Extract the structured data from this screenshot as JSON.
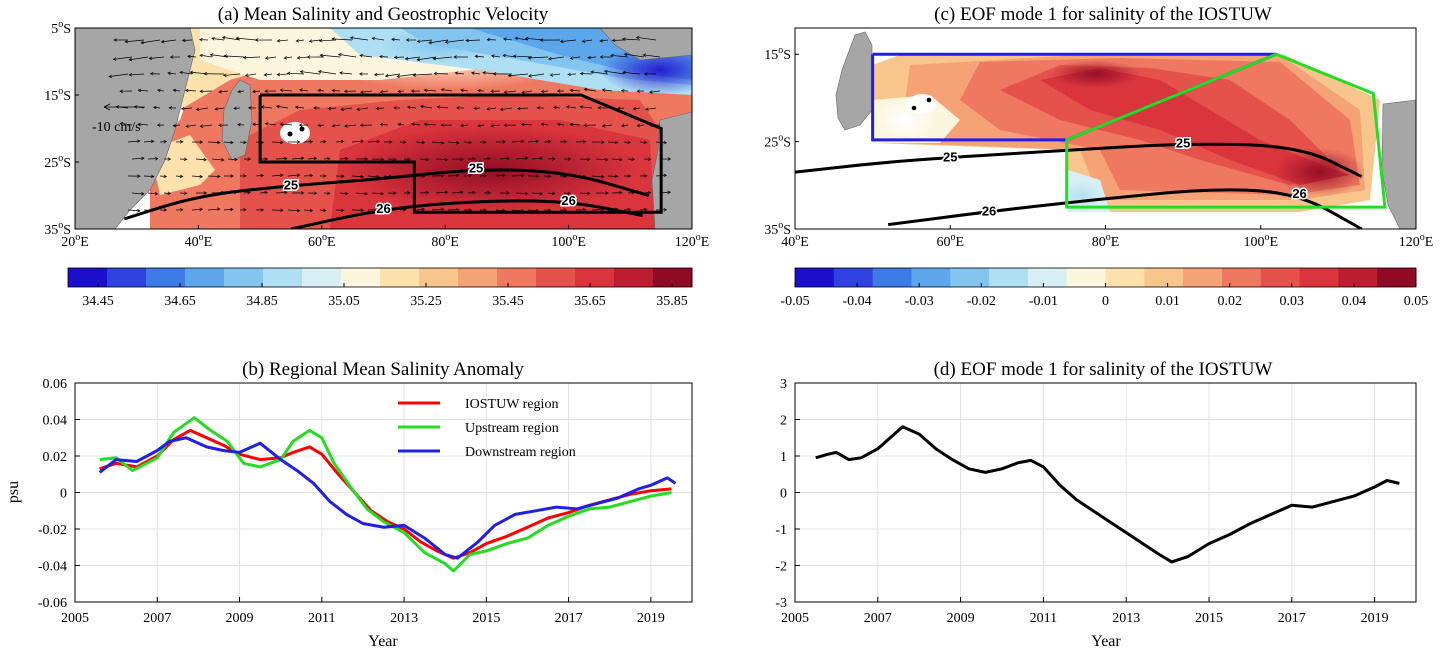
{
  "chart_data": [
    {
      "panel": "a",
      "type": "heatmap",
      "title": "(a) Mean Salinity and Geostrophic Velocity",
      "x_ticks": [
        "20oE",
        "40oE",
        "60oE",
        "80oE",
        "100oE",
        "120oE"
      ],
      "y_ticks": [
        "5oS",
        "15oS",
        "25oS",
        "35oS"
      ],
      "xlim": [
        20,
        120
      ],
      "ylim": [
        -35,
        -5
      ],
      "quiver_key": "-10 cm/s",
      "contours": [
        {
          "label": "25",
          "points": [
            [
              28,
              -33.5
            ],
            [
              40,
              -30
            ],
            [
              55,
              -28.5
            ],
            [
              70,
              -27.5
            ],
            [
              85,
              -26
            ],
            [
              100,
              -26.5
            ],
            [
              113,
              -30
            ]
          ]
        },
        {
          "label": "26",
          "points": [
            [
              55,
              -35
            ],
            [
              70,
              -32
            ],
            [
              85,
              -30.8
            ],
            [
              100,
              -30.8
            ],
            [
              112,
              -33
            ]
          ]
        }
      ],
      "boxes": [
        {
          "name": "IOSTUW region",
          "color": "#000000",
          "points": [
            [
              50,
              -15
            ],
            [
              102,
              -15
            ],
            [
              115,
              -20
            ],
            [
              115,
              -32.5
            ],
            [
              75,
              -32.5
            ],
            [
              75,
              -25
            ],
            [
              50,
              -25
            ],
            [
              50,
              -15
            ]
          ]
        }
      ],
      "colorbar": {
        "ticks": [
          "34.45",
          "34.65",
          "34.85",
          "35.05",
          "35.25",
          "35.45",
          "35.65",
          "35.85"
        ],
        "colors": [
          "#1c0fcb",
          "#2f42e0",
          "#3e7be6",
          "#5ca6ec",
          "#84c5f0",
          "#aedff2",
          "#d8f0f5",
          "#fdf6de",
          "#fde2ae",
          "#f8c68c",
          "#f4a276",
          "#ef7860",
          "#e5524c",
          "#da353d",
          "#bd1d30",
          "#8f0b24"
        ]
      }
    },
    {
      "panel": "c",
      "type": "heatmap",
      "title": "(c) EOF mode 1 for salinity of the IOSTUW",
      "x_ticks": [
        "40oE",
        "60oE",
        "80oE",
        "100oE",
        "120oE"
      ],
      "y_ticks": [
        "15oS",
        "25oS",
        "35oS"
      ],
      "xlim": [
        40,
        120
      ],
      "ylim": [
        -35,
        -12
      ],
      "contours": [
        {
          "label": "25",
          "points": [
            [
              40,
              -28.5
            ],
            [
              50,
              -27.5
            ],
            [
              60,
              -26.8
            ],
            [
              75,
              -26
            ],
            [
              90,
              -25.2
            ],
            [
              105,
              -25.5
            ],
            [
              113,
              -29
            ]
          ]
        },
        {
          "label": "26",
          "points": [
            [
              52,
              -34.5
            ],
            [
              65,
              -33
            ],
            [
              80,
              -31.5
            ],
            [
              95,
              -30.3
            ],
            [
              105,
              -31
            ],
            [
              113,
              -35
            ]
          ]
        }
      ],
      "boxes": [
        {
          "name": "Downstream region",
          "color": "#1f1fe6",
          "points": [
            [
              50,
              -15
            ],
            [
              102,
              -15
            ],
            [
              75,
              -24.8
            ],
            [
              50,
              -24.8
            ],
            [
              50,
              -15
            ]
          ]
        },
        {
          "name": "Upstream region",
          "color": "#22dd22",
          "points": [
            [
              102,
              -15
            ],
            [
              114.5,
              -19.5
            ],
            [
              116,
              -32.5
            ],
            [
              75,
              -32.5
            ],
            [
              75,
              -24.8
            ],
            [
              102,
              -15
            ]
          ]
        }
      ],
      "colorbar": {
        "ticks": [
          "-0.05",
          "-0.04",
          "-0.03",
          "-0.02",
          "-0.01",
          "0",
          "0.01",
          "0.02",
          "0.03",
          "0.04",
          "0.05"
        ],
        "colors": [
          "#1c0fcb",
          "#2f42e0",
          "#3e7be6",
          "#5ca6ec",
          "#84c5f0",
          "#aedff2",
          "#d8f0f5",
          "#fdf6de",
          "#fde2ae",
          "#f8c68c",
          "#f4a276",
          "#ef7860",
          "#e5524c",
          "#da353d",
          "#bd1d30",
          "#8f0b24"
        ]
      }
    },
    {
      "panel": "b",
      "type": "line",
      "title": "(b) Regional Mean Salinity Anomaly",
      "xlabel": "Year",
      "ylabel": "psu",
      "xlim": [
        2005,
        2020
      ],
      "ylim": [
        -0.06,
        0.06
      ],
      "x_ticks": [
        2005,
        2007,
        2009,
        2011,
        2013,
        2015,
        2017,
        2019
      ],
      "y_ticks": [
        -0.06,
        -0.04,
        -0.02,
        0,
        0.02,
        0.04,
        0.06
      ],
      "y_tick_labels": [
        "-0.06",
        "-0.04",
        "-0.02",
        "0",
        "0.02",
        "0.04",
        "0.06"
      ],
      "grid": true,
      "legend_position": "top-right",
      "series": [
        {
          "name": "IOSTUW region",
          "color": "#ff0000",
          "x": [
            2005.6,
            2006.0,
            2006.5,
            2007.0,
            2007.4,
            2007.8,
            2008.2,
            2008.6,
            2009.0,
            2009.5,
            2010.0,
            2010.3,
            2010.7,
            2011.0,
            2011.4,
            2011.8,
            2012.2,
            2012.6,
            2013.0,
            2013.4,
            2013.8,
            2014.2,
            2014.6,
            2015.0,
            2015.5,
            2016.0,
            2016.5,
            2017.0,
            2017.5,
            2018.0,
            2018.5,
            2019.0,
            2019.5
          ],
          "y": [
            0.013,
            0.016,
            0.014,
            0.02,
            0.029,
            0.034,
            0.03,
            0.026,
            0.021,
            0.018,
            0.019,
            0.022,
            0.025,
            0.021,
            0.01,
            0.0,
            -0.01,
            -0.016,
            -0.02,
            -0.027,
            -0.032,
            -0.036,
            -0.033,
            -0.028,
            -0.024,
            -0.019,
            -0.014,
            -0.011,
            -0.007,
            -0.004,
            -0.001,
            0.001,
            0.002
          ]
        },
        {
          "name": "Upstream region",
          "color": "#22dd22",
          "x": [
            2005.6,
            2006.0,
            2006.4,
            2007.0,
            2007.4,
            2007.9,
            2008.3,
            2008.7,
            2009.1,
            2009.5,
            2010.0,
            2010.3,
            2010.7,
            2011.0,
            2011.3,
            2011.7,
            2012.1,
            2012.5,
            2013.0,
            2013.5,
            2014.0,
            2014.2,
            2014.6,
            2015.0,
            2015.5,
            2016.0,
            2016.5,
            2017.0,
            2017.5,
            2018.0,
            2018.5,
            2019.0,
            2019.5
          ],
          "y": [
            0.018,
            0.019,
            0.012,
            0.019,
            0.033,
            0.041,
            0.034,
            0.028,
            0.016,
            0.014,
            0.018,
            0.028,
            0.034,
            0.03,
            0.016,
            0.003,
            -0.009,
            -0.016,
            -0.022,
            -0.033,
            -0.039,
            -0.043,
            -0.034,
            -0.032,
            -0.028,
            -0.025,
            -0.018,
            -0.013,
            -0.009,
            -0.008,
            -0.005,
            -0.002,
            0.0
          ]
        },
        {
          "name": "Downstream region",
          "color": "#1f1fe6",
          "x": [
            2005.6,
            2006.0,
            2006.5,
            2007.0,
            2007.3,
            2007.7,
            2008.2,
            2008.6,
            2009.0,
            2009.5,
            2010.0,
            2010.4,
            2010.8,
            2011.2,
            2011.6,
            2012.0,
            2012.5,
            2013.0,
            2013.5,
            2014.0,
            2014.3,
            2014.8,
            2015.2,
            2015.7,
            2016.2,
            2016.7,
            2017.2,
            2017.7,
            2018.2,
            2018.7,
            2019.0,
            2019.4,
            2019.6
          ],
          "y": [
            0.011,
            0.018,
            0.017,
            0.023,
            0.028,
            0.03,
            0.025,
            0.023,
            0.022,
            0.027,
            0.018,
            0.012,
            0.005,
            -0.005,
            -0.012,
            -0.017,
            -0.019,
            -0.018,
            -0.025,
            -0.034,
            -0.036,
            -0.027,
            -0.018,
            -0.012,
            -0.01,
            -0.008,
            -0.009,
            -0.006,
            -0.003,
            0.002,
            0.004,
            0.008,
            0.005
          ]
        }
      ]
    },
    {
      "panel": "d",
      "type": "line",
      "title": "(d) EOF mode 1 for salinity of the IOSTUW",
      "xlabel": "Year",
      "xlim": [
        2005,
        2020
      ],
      "ylim": [
        -3,
        3
      ],
      "x_ticks": [
        2005,
        2007,
        2009,
        2011,
        2013,
        2015,
        2017,
        2019
      ],
      "y_ticks": [
        -3,
        -2,
        -1,
        0,
        1,
        2,
        3
      ],
      "y_tick_labels": [
        "-3",
        "-2",
        "-1",
        "0",
        "1",
        "2",
        "3"
      ],
      "grid": true,
      "series": [
        {
          "color": "#000000",
          "x": [
            2005.5,
            2005.8,
            2006.0,
            2006.3,
            2006.6,
            2007.0,
            2007.3,
            2007.6,
            2008.0,
            2008.4,
            2008.8,
            2009.2,
            2009.6,
            2010.0,
            2010.4,
            2010.7,
            2011.0,
            2011.4,
            2011.8,
            2012.2,
            2012.6,
            2013.0,
            2013.4,
            2013.8,
            2014.1,
            2014.5,
            2015.0,
            2015.5,
            2016.0,
            2016.5,
            2017.0,
            2017.5,
            2018.0,
            2018.5,
            2019.0,
            2019.3,
            2019.6
          ],
          "y": [
            0.95,
            1.05,
            1.1,
            0.9,
            0.95,
            1.2,
            1.5,
            1.8,
            1.6,
            1.2,
            0.9,
            0.65,
            0.55,
            0.65,
            0.82,
            0.88,
            0.7,
            0.2,
            -0.2,
            -0.5,
            -0.8,
            -1.1,
            -1.4,
            -1.7,
            -1.9,
            -1.75,
            -1.4,
            -1.15,
            -0.85,
            -0.6,
            -0.35,
            -0.4,
            -0.25,
            -0.1,
            0.15,
            0.33,
            0.25
          ]
        }
      ]
    }
  ]
}
